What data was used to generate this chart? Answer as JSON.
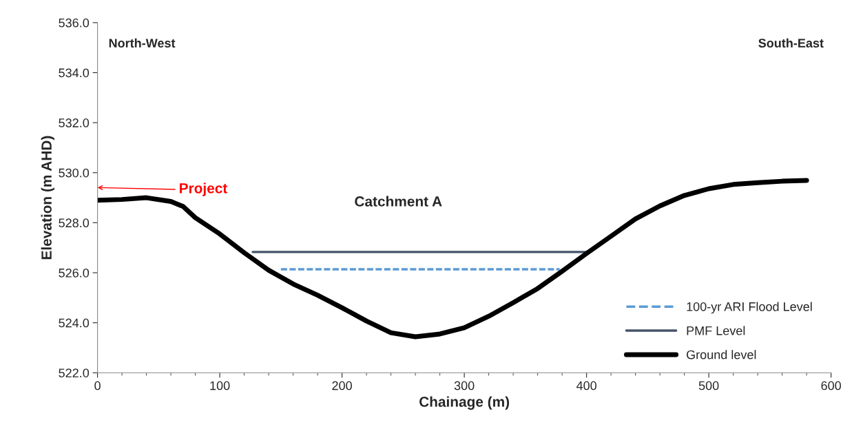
{
  "chart_data": {
    "type": "line",
    "xlabel": "Chainage (m)",
    "ylabel": "Elevation (m AHD)",
    "xlim": [
      0,
      600
    ],
    "xticks": [
      0,
      100,
      200,
      300,
      400,
      500,
      600
    ],
    "ylim": [
      522,
      536
    ],
    "yticks": [
      {
        "value": 522,
        "label": "522.0"
      },
      {
        "value": 524,
        "label": "524.0"
      },
      {
        "value": 526,
        "label": "526.0"
      },
      {
        "value": 528,
        "label": "528.0"
      },
      {
        "value": 530,
        "label": "530.0"
      },
      {
        "value": 532,
        "label": "532.0"
      },
      {
        "value": 534,
        "label": "534.0"
      },
      {
        "value": 536,
        "label": "536.0"
      }
    ],
    "grid": false,
    "legend": "bottom right",
    "series": [
      {
        "name": "100-yr ARI Flood Level",
        "color": "#5b9bd5",
        "line_style": "dashed",
        "x": [
          150,
          378
        ],
        "values": [
          526.14,
          526.14
        ]
      },
      {
        "name": "PMF Level",
        "color": "#44546a",
        "line_style": "solid",
        "x": [
          127,
          402
        ],
        "values": [
          526.83,
          526.83
        ]
      },
      {
        "name": "Ground level",
        "color": "#000000",
        "line_style": "solid",
        "x": [
          0,
          20,
          40,
          60,
          70,
          80,
          100,
          120,
          140,
          160,
          180,
          200,
          220,
          240,
          260,
          280,
          300,
          320,
          340,
          360,
          380,
          400,
          420,
          440,
          460,
          480,
          500,
          520,
          540,
          560,
          580
        ],
        "values": [
          528.9,
          528.93,
          529.0,
          528.85,
          528.65,
          528.2,
          527.55,
          526.8,
          526.1,
          525.55,
          525.1,
          524.6,
          524.07,
          523.6,
          523.44,
          523.55,
          523.8,
          524.26,
          524.8,
          525.37,
          526.06,
          526.77,
          527.46,
          528.15,
          528.67,
          529.09,
          529.36,
          529.53,
          529.6,
          529.66,
          529.69
        ]
      }
    ],
    "annotations": [
      "North-West",
      "South-East",
      "Catchment A",
      "Project"
    ]
  }
}
